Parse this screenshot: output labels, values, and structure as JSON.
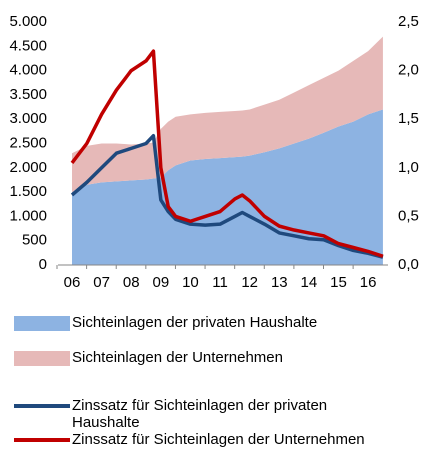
{
  "chart_data": {
    "type": "area-line",
    "x": [
      6,
      6.5,
      7,
      7.5,
      8,
      8.5,
      8.75,
      9,
      9.25,
      9.5,
      10,
      10.5,
      11,
      11.5,
      11.75,
      12,
      12.5,
      13,
      13.5,
      14,
      14.5,
      15,
      15.5,
      16,
      16.5
    ],
    "xlim": [
      6,
      16.57
    ],
    "xticks": [
      {
        "value": 6,
        "label": "06"
      },
      {
        "value": 7,
        "label": "07"
      },
      {
        "value": 8,
        "label": "08"
      },
      {
        "value": 9,
        "label": "09"
      },
      {
        "value": 10,
        "label": "10"
      },
      {
        "value": 11,
        "label": "11"
      },
      {
        "value": 12,
        "label": "12"
      },
      {
        "value": 13,
        "label": "13"
      },
      {
        "value": 14,
        "label": "14"
      },
      {
        "value": 15,
        "label": "15"
      },
      {
        "value": 16,
        "label": "16"
      }
    ],
    "ylim": [
      0,
      5000
    ],
    "yticks": [
      0,
      500,
      {
        "value": 1000,
        "label": "1.000"
      },
      {
        "value": 1500,
        "label": "1.500"
      },
      {
        "value": 2000,
        "label": "2.000"
      },
      {
        "value": 2500,
        "label": "2.500"
      },
      {
        "value": 3000,
        "label": "3.000"
      },
      {
        "value": 3500,
        "label": "3.500"
      },
      {
        "value": 4000,
        "label": "4.000"
      },
      {
        "value": 4500,
        "label": "4.500"
      },
      {
        "value": 5000,
        "label": "5.000"
      }
    ],
    "y2lim": [
      0,
      2.5
    ],
    "y2ticks": [
      {
        "value": 0,
        "label": "0,0"
      },
      {
        "value": 0.5,
        "label": "0,5"
      },
      {
        "value": 1,
        "label": "1,0"
      },
      {
        "value": 1.5,
        "label": "1,5"
      },
      {
        "value": 2,
        "label": "2,0"
      },
      {
        "value": 2.5,
        "label": "2,5"
      }
    ],
    "legend": "bottom",
    "series": [
      {
        "name": "Sichteinlagen der privaten Haushalte",
        "kind": "area",
        "stacked": true,
        "color": "#8db3e2",
        "values": [
          1500,
          1650,
          1700,
          1720,
          1740,
          1760,
          1780,
          1800,
          1950,
          2050,
          2150,
          2180,
          2200,
          2220,
          2230,
          2250,
          2320,
          2400,
          2500,
          2600,
          2720,
          2850,
          2950,
          3100,
          3200
        ]
      },
      {
        "name": "Sichteinlagen der Unternehmen",
        "kind": "area",
        "stacked": true,
        "color": "#e6b9b8",
        "values": [
          800,
          800,
          800,
          780,
          740,
          740,
          740,
          1000,
          1000,
          1000,
          950,
          950,
          950,
          950,
          950,
          950,
          980,
          1000,
          1050,
          1100,
          1130,
          1150,
          1250,
          1300,
          1500
        ]
      },
      {
        "name": "Zinssatz für Sichteinlagen der privaten Haushalte",
        "kind": "line",
        "axis": "y2",
        "color": "#1f497d",
        "values": [
          0.72,
          0.85,
          1.0,
          1.15,
          1.2,
          1.25,
          1.33,
          0.67,
          0.55,
          0.47,
          0.42,
          0.41,
          0.42,
          0.5,
          0.54,
          0.5,
          0.42,
          0.33,
          0.3,
          0.27,
          0.26,
          0.2,
          0.15,
          0.12,
          0.08
        ]
      },
      {
        "name": "Zinssatz für Sichteinlagen der Unternehmen",
        "kind": "line",
        "axis": "y2",
        "color": "#c00000",
        "values": [
          1.05,
          1.25,
          1.55,
          1.8,
          2.0,
          2.1,
          2.2,
          1.0,
          0.6,
          0.5,
          0.45,
          0.5,
          0.55,
          0.68,
          0.72,
          0.66,
          0.5,
          0.4,
          0.36,
          0.33,
          0.3,
          0.22,
          0.18,
          0.14,
          0.09
        ]
      }
    ]
  }
}
